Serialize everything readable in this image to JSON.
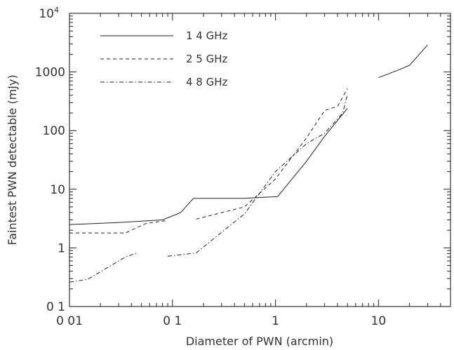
{
  "chart_data": {
    "type": "line",
    "xlabel": "Diameter of PWN (arcmin)",
    "ylabel": "Faintest PWN detectable (mJy)",
    "x_scale": "log",
    "y_scale": "log",
    "xlim": [
      0.01,
      50
    ],
    "ylim": [
      0.1,
      10000
    ],
    "grid": false,
    "legend_position": "top-left",
    "x_ticks": [
      {
        "value": 0.01,
        "label": "0 01"
      },
      {
        "value": 0.1,
        "label": "0 1"
      },
      {
        "value": 1,
        "label": "1"
      },
      {
        "value": 10,
        "label": "10"
      }
    ],
    "y_ticks": [
      {
        "value": 0.1,
        "label": "0 1"
      },
      {
        "value": 1,
        "label": "1"
      },
      {
        "value": 10,
        "label": "10"
      },
      {
        "value": 100,
        "label": "100"
      },
      {
        "value": 1000,
        "label": "1000"
      },
      {
        "value": 10000,
        "label": "10",
        "exponent": "4"
      }
    ],
    "series": [
      {
        "name": "1 4 GHz",
        "dash": "solid",
        "segments": [
          [
            [
              0.01,
              2.5
            ],
            [
              0.03,
              2.7
            ],
            [
              0.08,
              3.0
            ],
            [
              0.12,
              4.0
            ],
            [
              0.16,
              7.0
            ],
            [
              0.5,
              7.0
            ],
            [
              1.05,
              7.5
            ],
            [
              2.0,
              30
            ],
            [
              3.0,
              80
            ],
            [
              5.0,
              240
            ]
          ],
          [
            [
              10,
              800
            ],
            [
              15,
              1050
            ],
            [
              20,
              1300
            ],
            [
              30,
              2900
            ]
          ]
        ]
      },
      {
        "name": "2 5 GHz",
        "dash": "dashed",
        "segments": [
          [
            [
              0.01,
              1.8
            ],
            [
              0.035,
              1.8
            ],
            [
              0.055,
              2.6
            ],
            [
              0.085,
              2.9
            ]
          ],
          [
            [
              0.17,
              3.1
            ],
            [
              0.5,
              5.0
            ],
            [
              1.0,
              15
            ],
            [
              2.0,
              75
            ],
            [
              3.0,
              220
            ],
            [
              4.0,
              260
            ],
            [
              5.0,
              520
            ]
          ]
        ]
      },
      {
        "name": "4 8 GHz",
        "dash": "dashdot",
        "segments": [
          [
            [
              0.01,
              0.26
            ],
            [
              0.015,
              0.29
            ],
            [
              0.035,
              0.7
            ],
            [
              0.045,
              0.82
            ]
          ],
          [
            [
              0.09,
              0.72
            ],
            [
              0.17,
              0.82
            ],
            [
              0.5,
              3.8
            ],
            [
              1.0,
              20
            ],
            [
              2.0,
              60
            ],
            [
              3.0,
              90
            ],
            [
              4.5,
              200
            ],
            [
              5.0,
              420
            ]
          ]
        ]
      }
    ]
  }
}
